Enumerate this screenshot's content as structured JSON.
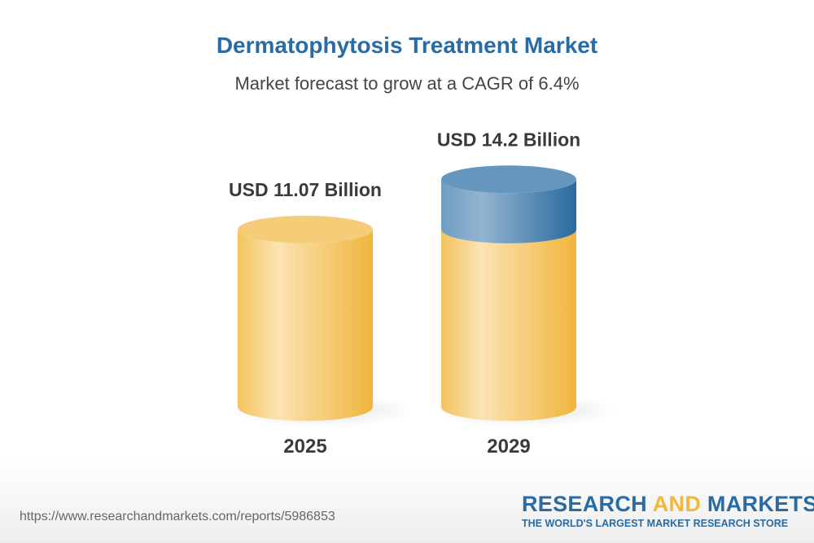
{
  "chart_data": {
    "type": "bar",
    "title": "Dermatophytosis Treatment Market",
    "subtitle": "Market forecast to grow at a CAGR of 6.4%",
    "categories": [
      "2025",
      "2029"
    ],
    "values": [
      11.07,
      14.2
    ],
    "data_labels": [
      "USD 11.07 Billion",
      "USD 14.2 Billion"
    ],
    "unit": "USD Billion",
    "style": "3d-cylinder",
    "colors": {
      "base": "#f2be4a",
      "growth": "#2d6ea3",
      "title": "#2a6ba3"
    }
  },
  "footer": {
    "url": "https://www.researchandmarkets.com/reports/5986853",
    "logo_part1": "RESEARCH ",
    "logo_part2": "AND",
    "logo_part3": " MARKETS",
    "tagline": "THE WORLD'S LARGEST MARKET RESEARCH STORE"
  }
}
